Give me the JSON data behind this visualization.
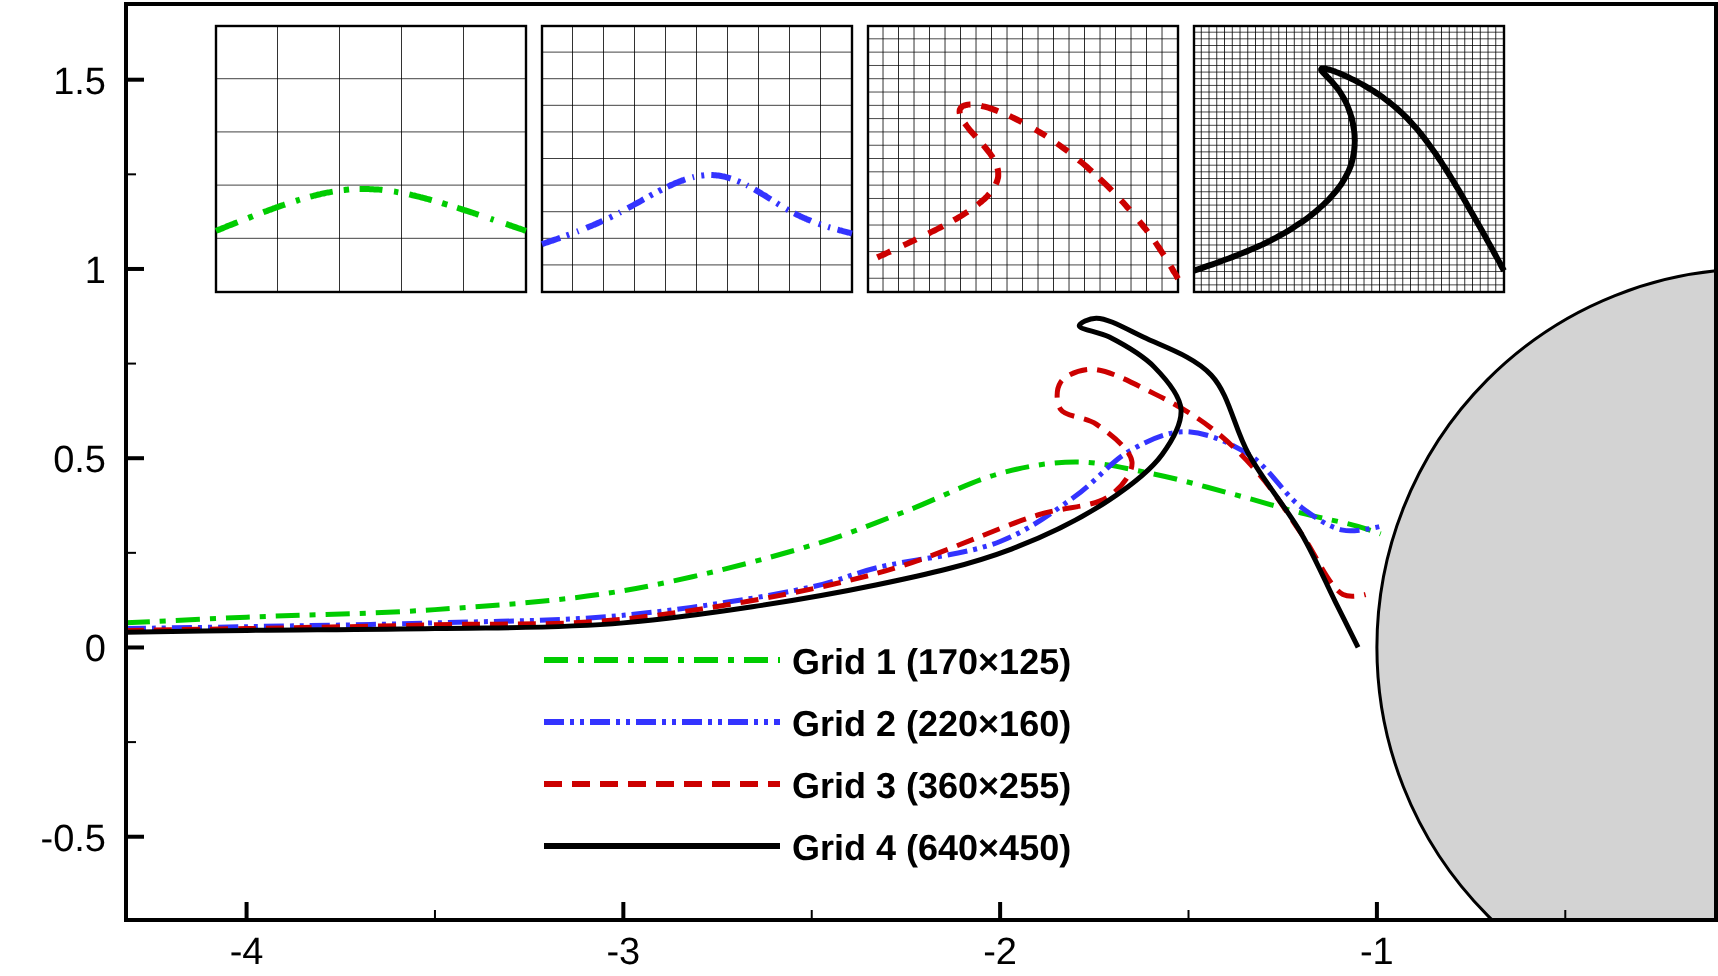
{
  "chart_data": {
    "type": "line",
    "xlim": [
      -4.32,
      -0.1
    ],
    "ylim": [
      -0.72,
      1.7
    ],
    "xticks": [
      -4,
      {
        "value": -3.5,
        "label": null
      },
      -3,
      {
        "value": -2.5,
        "label": null
      },
      -2,
      {
        "value": -1.5,
        "label": null
      },
      -1,
      {
        "value": -0.5,
        "label": null
      }
    ],
    "yticks": [
      -0.5,
      {
        "value": -0.25,
        "label": null
      },
      0,
      {
        "value": 0.25,
        "label": null
      },
      0.5,
      {
        "value": 0.75,
        "label": null
      },
      1,
      {
        "value": 1.25,
        "label": null
      },
      1.5
    ],
    "grid": false,
    "legend": "bottom",
    "marker": "none",
    "series": [
      {
        "name": "Grid 1 (170×125)",
        "color": "#00cc00",
        "line_style": "dashdot",
        "x": [
          -4.32,
          -4,
          -3.5,
          -3,
          -2.5,
          -2.25,
          -2,
          -1.8,
          -1.6,
          -1.4,
          -1.2,
          -1.05,
          -0.99
        ],
        "values": [
          0.065,
          0.08,
          0.1,
          0.15,
          0.27,
          0.36,
          0.46,
          0.49,
          0.46,
          0.41,
          0.355,
          0.32,
          0.3
        ]
      },
      {
        "name": "Grid 2 (220×160)",
        "color": "#3333ff",
        "line_style": "dashdotdot",
        "x": [
          -4.32,
          -4,
          -3.5,
          -3,
          -2.5,
          -2.33,
          -2,
          -1.8,
          -1.655,
          -1.51,
          -1.34,
          -1.2,
          -1.09,
          -0.99
        ],
        "values": [
          0.05,
          0.055,
          0.065,
          0.085,
          0.16,
          0.21,
          0.28,
          0.4,
          0.52,
          0.57,
          0.51,
          0.37,
          0.31,
          0.32
        ]
      },
      {
        "name": "Grid 3 (360×255)",
        "color": "#cc0000",
        "line_style": "dashed",
        "x": [
          -4.32,
          -4,
          -3.5,
          -3,
          -2.33,
          -1.9,
          -1.71,
          -1.65,
          -1.745,
          -1.84,
          -1.84,
          -1.76,
          -1.59,
          -1.44,
          -1.31,
          -1.2,
          -1.09,
          -1.03
        ],
        "values": [
          0.045,
          0.05,
          0.06,
          0.075,
          0.195,
          0.35,
          0.4,
          0.49,
          0.59,
          0.63,
          0.7,
          0.735,
          0.67,
          0.58,
          0.455,
          0.3,
          0.14,
          0.14
        ]
      },
      {
        "name": "Grid 4 (640×450)",
        "color": "#000000",
        "line_style": "solid",
        "x": [
          -4.32,
          -4,
          -3.5,
          -3,
          -2.33,
          -1.97,
          -1.71,
          -1.57,
          -1.52,
          -1.59,
          -1.71,
          -1.79,
          -1.745,
          -1.62,
          -1.44,
          -1.34,
          -1.2,
          -1.11,
          -1.05
        ],
        "values": [
          0.04,
          0.045,
          0.05,
          0.065,
          0.165,
          0.26,
          0.39,
          0.51,
          0.63,
          0.74,
          0.82,
          0.85,
          0.87,
          0.82,
          0.72,
          0.51,
          0.3,
          0.12,
          0.0
        ]
      }
    ]
  }
}
